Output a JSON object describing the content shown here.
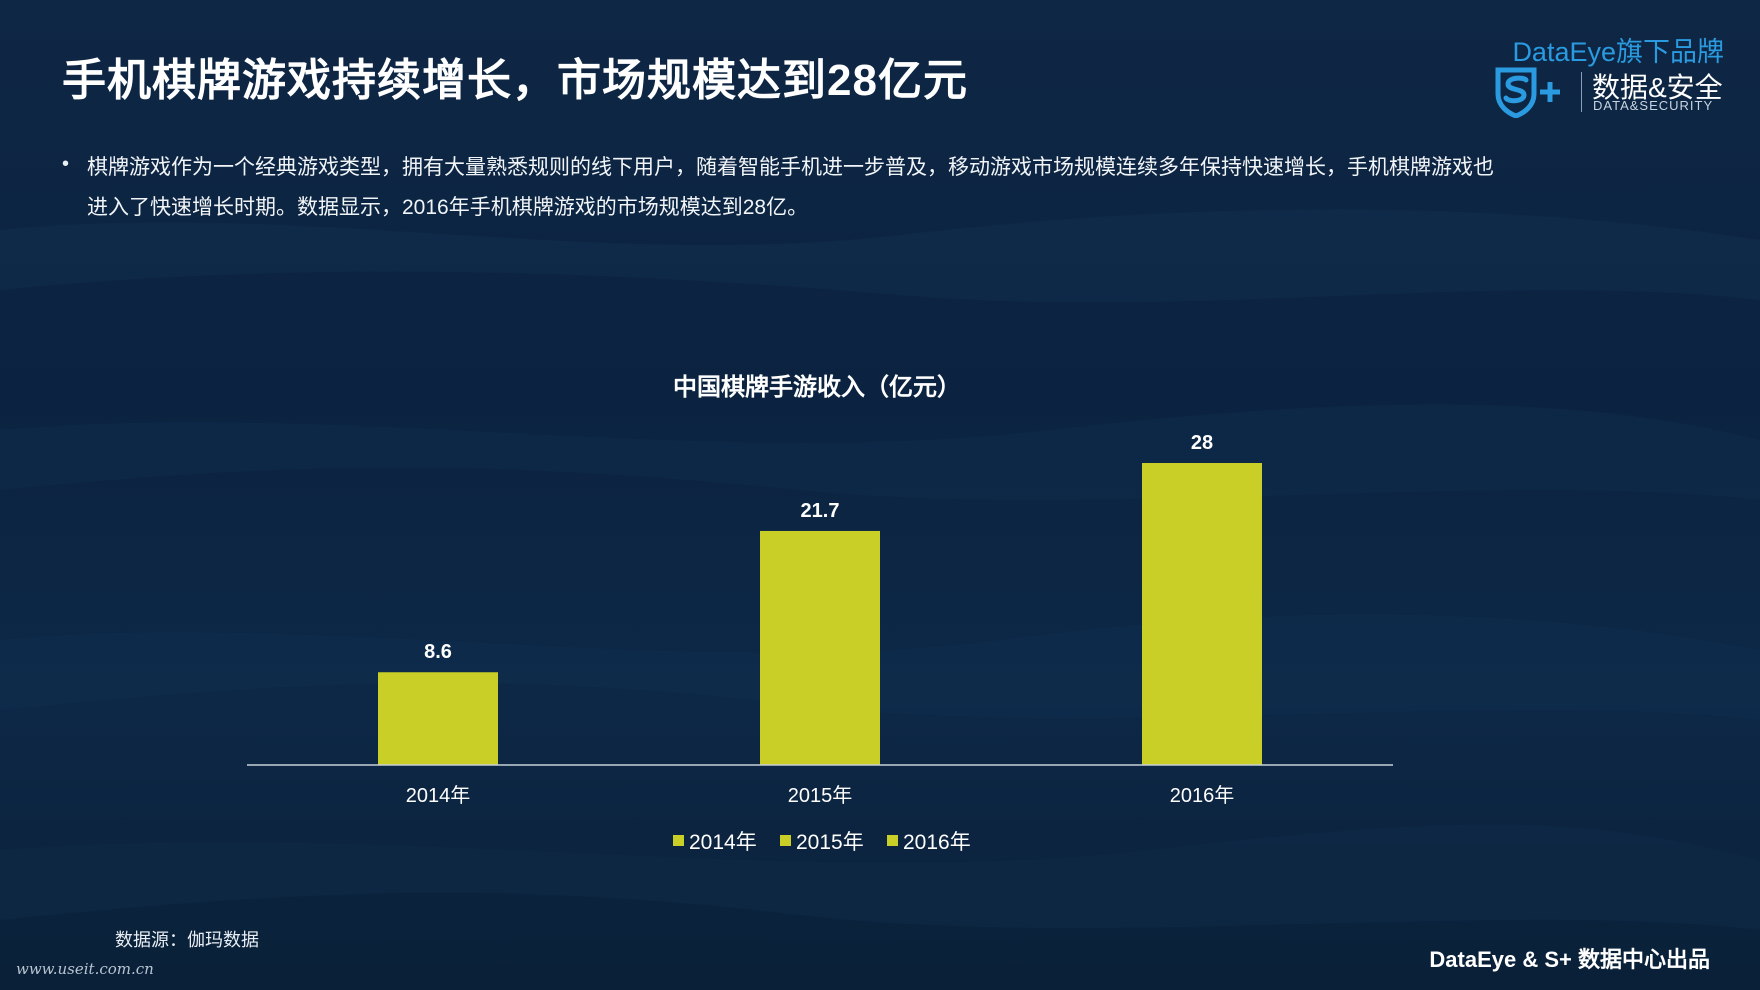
{
  "slide": {
    "title": "手机棋牌游戏持续增长，市场规模达到28亿元",
    "bullet_symbol": "•",
    "body_line1": "棋牌游戏作为一个经典游戏类型，拥有大量熟悉规则的线下用户，随着智能手机进一步普及，移动游戏市场规模连续多年保持快速增长，手机棋牌游戏也",
    "body_line2": "进入了快速增长时期。数据显示，2016年手机棋牌游戏的市场规模达到28亿。",
    "source": "数据源：伽玛数据",
    "watermark_url": "www.useit.com.cn",
    "footer": "DataEye & S+ 数据中心出品"
  },
  "brand": {
    "top": "DataEye旗下品牌",
    "cn": "数据&安全",
    "en": "DATA&SECURITY",
    "logo_icon": "shield-s-plus-icon"
  },
  "colors": {
    "background": "#0c2440",
    "bar": "#c9cf27",
    "brand_blue": "#2a9be0",
    "axis": "#c8d0d8"
  },
  "chart_data": {
    "type": "bar",
    "title": "中国棋牌手游收入（亿元）",
    "categories": [
      "2014年",
      "2015年",
      "2016年"
    ],
    "values": [
      8.6,
      21.7,
      28
    ],
    "value_labels": [
      "8.6",
      "21.7",
      "28"
    ],
    "legend": [
      "2014年",
      "2015年",
      "2016年"
    ],
    "legend_placement": "bottom",
    "ylim": [
      0,
      28
    ],
    "grid": false
  }
}
